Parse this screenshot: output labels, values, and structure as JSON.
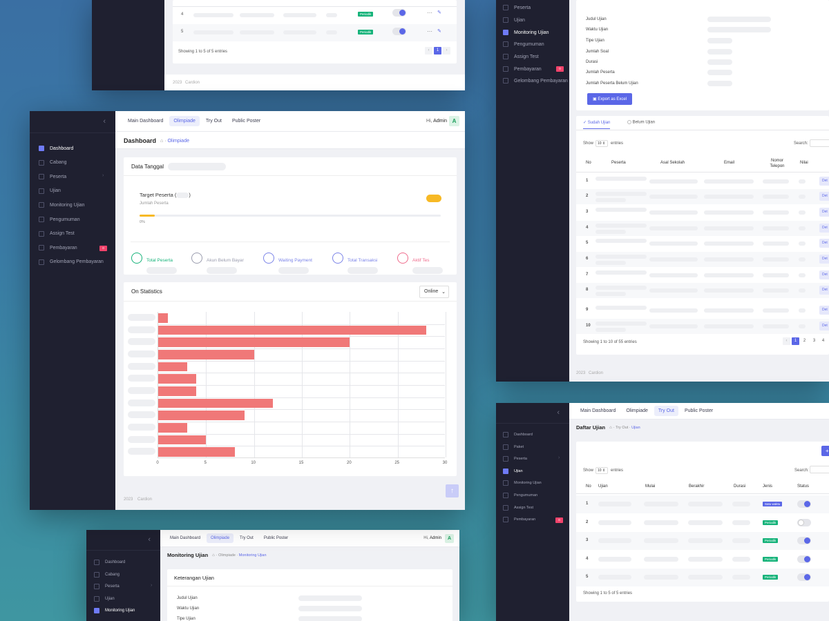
{
  "main_window": {
    "tabs": [
      "Main Dashboard",
      "Olimpiade",
      "Try Out",
      "Public Poster"
    ],
    "active_tab": 1,
    "greeting": "Hi,",
    "user": "Admin",
    "avatar": "A",
    "breadcrumb": {
      "title": "Dashboard",
      "current": "Olimpiade"
    },
    "sidebar": [
      {
        "label": "Dashboard",
        "icon": "home-icon",
        "active": true
      },
      {
        "label": "Cabang",
        "icon": "branch-icon"
      },
      {
        "label": "Peserta",
        "icon": "users-icon",
        "chevron": true
      },
      {
        "label": "Ujian",
        "icon": "exam-icon"
      },
      {
        "label": "Monitoring Ujian",
        "icon": "eye-icon"
      },
      {
        "label": "Pengumuman",
        "icon": "announcement-icon"
      },
      {
        "label": "Assign Test",
        "icon": "assign-icon"
      },
      {
        "label": "Pembayaran",
        "icon": "payment-icon",
        "badge": "0"
      },
      {
        "label": "Gelombang Pembayaran",
        "icon": "wave-icon"
      }
    ],
    "data_tanggal": "Data Tanggal",
    "target": {
      "title": "Target Peserta (",
      "close": ")",
      "sub": "Jumlah Peserta",
      "percent": "0%",
      "progress": 0.05
    },
    "stats": [
      {
        "label": "Total Peserta",
        "color": "#16b37a",
        "icon": "user-circle-icon"
      },
      {
        "label": "Akun Belum Bayar",
        "color": "#9a9cae",
        "icon": "user-circle-icon"
      },
      {
        "label": "Waiting Payment",
        "color": "#7a83e8",
        "icon": "list-icon"
      },
      {
        "label": "Total Transaksi",
        "color": "#7a83e8",
        "icon": "coins-icon"
      },
      {
        "label": "Aktif Tes",
        "color": "#ef6b8c",
        "icon": "folder-icon"
      }
    ],
    "statistics_title": "On Statistics",
    "filter": {
      "value": "Online"
    },
    "footer": {
      "year": "2023",
      "brand": "Cardion"
    }
  },
  "chart_data": {
    "type": "bar",
    "orientation": "horizontal",
    "values": [
      1,
      28,
      20,
      10,
      3,
      4,
      4,
      12,
      9,
      3,
      5,
      8
    ],
    "xlim": [
      0,
      30
    ],
    "xticks": [
      0,
      5,
      10,
      15,
      20,
      25,
      30
    ],
    "color": "#f07878",
    "grid": true
  },
  "top_left_window": {
    "rows": [
      "4",
      "5"
    ],
    "tag": "Periodik",
    "info": "Showing 1 to 5 of 5 entries",
    "page": "1",
    "footer": {
      "year": "2023",
      "brand": "Cardion"
    }
  },
  "right_top_window": {
    "sidebar": [
      {
        "label": "Peserta",
        "icon": "users-icon"
      },
      {
        "label": "Ujian",
        "icon": "exam-icon"
      },
      {
        "label": "Monitoring Ujian",
        "icon": "eye-icon",
        "active": true
      },
      {
        "label": "Pengumuman",
        "icon": "announcement-icon"
      },
      {
        "label": "Assign Test",
        "icon": "assign-icon"
      },
      {
        "label": "Pembayaran",
        "icon": "payment-icon",
        "badge": "0"
      },
      {
        "label": "Gelombang Pembayaran",
        "icon": "wave-icon"
      }
    ],
    "fields": [
      "Judul Ujian",
      "Waktu Ujian",
      "Tipe Ujian",
      "Jumlah Soal",
      "Durasi",
      "Jumlah Peserta",
      "Jumlah Peserta Belum Ujian"
    ],
    "export": "Export as Excel",
    "tabs": [
      "Sudah Ujian",
      "Belum Ujian"
    ],
    "show": "Show",
    "entries_val": "10",
    "entries": "entries",
    "search": "Search:",
    "headers": [
      "No",
      "Peserta",
      "Asal Sekolah",
      "Email",
      "Nomor Telepon",
      "Nilai"
    ],
    "rows": [
      "1",
      "2",
      "3",
      "4",
      "5",
      "6",
      "7",
      "8",
      "9",
      "10"
    ],
    "action": "Det",
    "info": "Showing 1 to 10 of 55 entries",
    "pages": [
      "1",
      "2",
      "3",
      "4"
    ],
    "footer": {
      "year": "2023",
      "brand": "Cardion"
    }
  },
  "right_bottom_window": {
    "tabs": [
      "Main Dashboard",
      "Olimpiade",
      "Try Out",
      "Public Poster"
    ],
    "active_tab": 2,
    "breadcrumb": {
      "title": "Daftar Ujian",
      "path": "Try Out",
      "current": "Ujian"
    },
    "sidebar": [
      {
        "label": "Dashboard",
        "icon": "home-icon"
      },
      {
        "label": "Paket",
        "icon": "package-icon"
      },
      {
        "label": "Peserta",
        "icon": "users-icon",
        "chevron": true
      },
      {
        "label": "Ujian",
        "icon": "exam-icon",
        "active": true
      },
      {
        "label": "Monitoring Ujian",
        "icon": "eye-icon"
      },
      {
        "label": "Pengumuman",
        "icon": "announcement-icon"
      },
      {
        "label": "Assign Test",
        "icon": "assign-icon"
      },
      {
        "label": "Pembayaran",
        "icon": "payment-icon",
        "badge": "0"
      }
    ],
    "add": "+",
    "show": "Show",
    "entries_val": "10",
    "entries": "entries",
    "search": "Search:",
    "headers": [
      "No",
      "Ujian",
      "Mulai",
      "Berakhir",
      "Durasi",
      "Jenis",
      "Status"
    ],
    "rows": [
      {
        "no": "1",
        "jenis": "Satu waktu",
        "on": true
      },
      {
        "no": "2",
        "jenis": "Periodik",
        "on": false
      },
      {
        "no": "3",
        "jenis": "Periodik",
        "on": true
      },
      {
        "no": "4",
        "jenis": "Periodik",
        "on": true
      },
      {
        "no": "5",
        "jenis": "Periodik",
        "on": true
      }
    ],
    "info": "Showing 1 to 5 of 5 entries"
  },
  "bottom_window": {
    "tabs": [
      "Main Dashboard",
      "Olimpiade",
      "Try Out",
      "Public Poster"
    ],
    "active_tab": 1,
    "greeting": "Hi,",
    "user": "Admin",
    "avatar": "A",
    "breadcrumb": {
      "title": "Monitoring Ujian",
      "path": "Olimpiade",
      "current": "Monitoring Ujian"
    },
    "sidebar": [
      {
        "label": "Dashboard",
        "icon": "home-icon"
      },
      {
        "label": "Cabang",
        "icon": "branch-icon"
      },
      {
        "label": "Peserta",
        "icon": "users-icon",
        "chevron": true
      },
      {
        "label": "Ujian",
        "icon": "exam-icon"
      },
      {
        "label": "Monitoring Ujian",
        "icon": "eye-icon",
        "active": true
      }
    ],
    "card_title": "Keterangan Ujian",
    "fields": [
      "Judul Ujian",
      "Waktu Ujian",
      "Tipe Ujian"
    ]
  }
}
